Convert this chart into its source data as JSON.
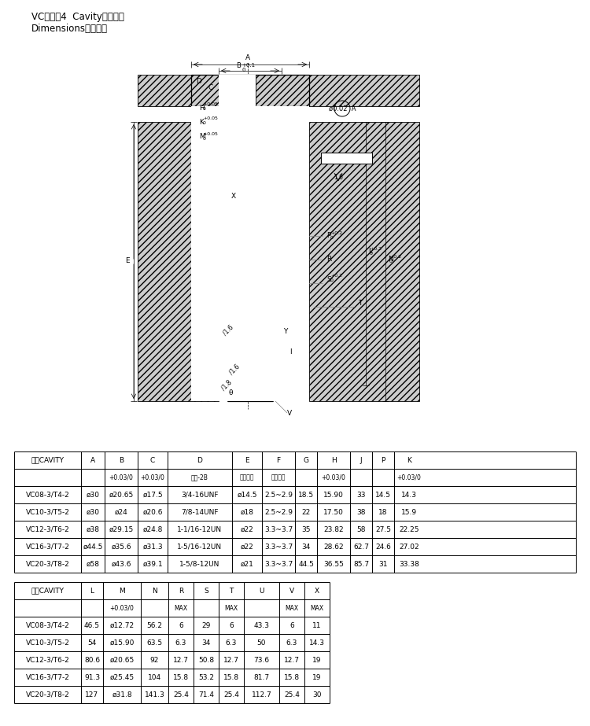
{
  "title_line1": "VC＊＊－4  Cavity（插孔）",
  "title_line2": "Dimensions（尺寸）",
  "table1_headers": [
    "插孔CAVITY",
    "A",
    "B",
    "C",
    "D",
    "E",
    "F",
    "G",
    "H",
    "J",
    "P",
    "K"
  ],
  "table1_subheaders": [
    "",
    "",
    "+0.03/0",
    "+0.03/0",
    "螺纹-2B",
    "螺纹长度",
    "侧角深度",
    "",
    "+0.03/0",
    "",
    "",
    "+0.03/0"
  ],
  "table1_data": [
    [
      "VC08-3/T4-2",
      "ø30",
      "ø20.65",
      "ø17.5",
      "3/4-16UNF",
      "ø14.5",
      "2.5~2.9",
      "18.5",
      "15.90",
      "33",
      "14.5",
      "14.3"
    ],
    [
      "VC10-3/T5-2",
      "ø30",
      "ø24",
      "ø20.6",
      "7/8-14UNF",
      "ø18",
      "2.5~2.9",
      "22",
      "17.50",
      "38",
      "18",
      "15.9"
    ],
    [
      "VC12-3/T6-2",
      "ø38",
      "ø29.15",
      "ø24.8",
      "1-1/16-12UN",
      "ø22",
      "3.3~3.7",
      "35",
      "23.82",
      "58",
      "27.5",
      "22.25"
    ],
    [
      "VC16-3/T7-2",
      "ø44.5",
      "ø35.6",
      "ø31.3",
      "1-5/16-12UN",
      "ø22",
      "3.3~3.7",
      "34",
      "28.62",
      "62.7",
      "24.6",
      "27.02"
    ],
    [
      "VC20-3/T8-2",
      "ø58",
      "ø43.6",
      "ø39.1",
      "1-5/8-12UN",
      "ø21",
      "3.3~3.7",
      "44.5",
      "36.55",
      "85.7",
      "31",
      "33.38"
    ]
  ],
  "table2_headers": [
    "插孔CAVITY",
    "L",
    "M",
    "N",
    "R",
    "S",
    "T",
    "U",
    "V",
    "X"
  ],
  "table2_subheaders": [
    "",
    "",
    "+0.03/0",
    "",
    "MAX",
    "",
    "MAX",
    "",
    "MAX",
    "MAX"
  ],
  "table2_data": [
    [
      "VC08-3/T4-2",
      "46.5",
      "ø12.72",
      "56.2",
      "6",
      "29",
      "6",
      "43.3",
      "6",
      "11"
    ],
    [
      "VC10-3/T5-2",
      "54",
      "ø15.90",
      "63.5",
      "6.3",
      "34",
      "6.3",
      "50",
      "6.3",
      "14.3"
    ],
    [
      "VC12-3/T6-2",
      "80.6",
      "ø20.65",
      "92",
      "12.7",
      "50.8",
      "12.7",
      "73.6",
      "12.7",
      "19"
    ],
    [
      "VC16-3/T7-2",
      "91.3",
      "ø25.45",
      "104",
      "15.8",
      "53.2",
      "15.8",
      "81.7",
      "15.8",
      "19"
    ],
    [
      "VC20-3/T8-2",
      "127",
      "ø31.8",
      "141.3",
      "25.4",
      "71.4",
      "25.4",
      "112.7",
      "25.4",
      "30"
    ]
  ],
  "bg_color": "#ffffff",
  "line_color": "#000000",
  "text_color": "#000000",
  "hatch_color": "#000000"
}
